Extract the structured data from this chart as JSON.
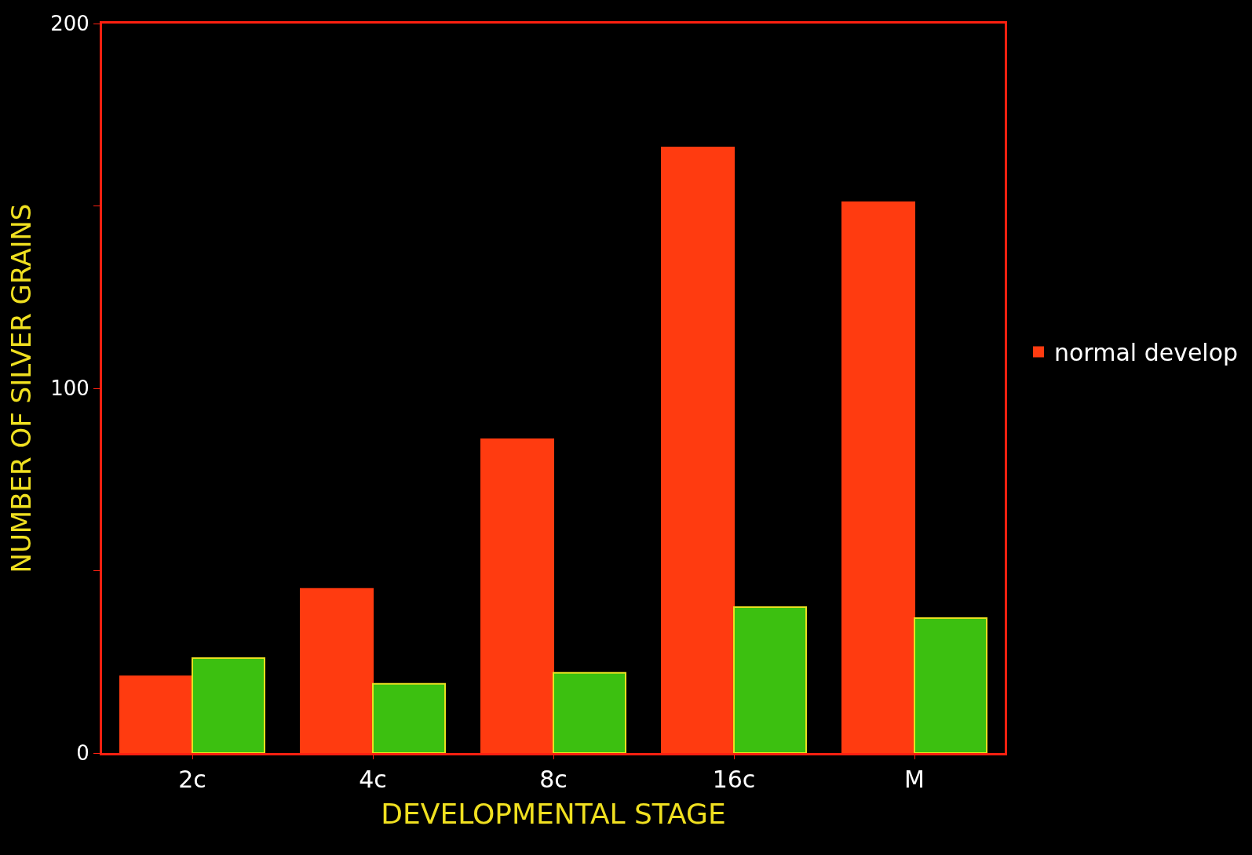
{
  "chart_data": {
    "type": "bar",
    "xlabel": "DEVELOPMENTAL STAGE",
    "ylabel": "NUMBER OF SILVER GRAINS",
    "categories": [
      "2c",
      "4c",
      "8c",
      "16c",
      "M"
    ],
    "series": [
      {
        "name": "normal develop",
        "color": "#ff3b10",
        "values": [
          21,
          45,
          86,
          166,
          151
        ]
      },
      {
        "color": "#3cc010",
        "values": [
          26,
          19,
          22,
          40,
          37
        ]
      }
    ],
    "ylim": [
      0,
      200
    ],
    "yticks": [
      0,
      {
        "value": 50,
        "label": null
      },
      100,
      {
        "value": 150,
        "label": null
      },
      200
    ],
    "grid": false,
    "legend": "right"
  }
}
